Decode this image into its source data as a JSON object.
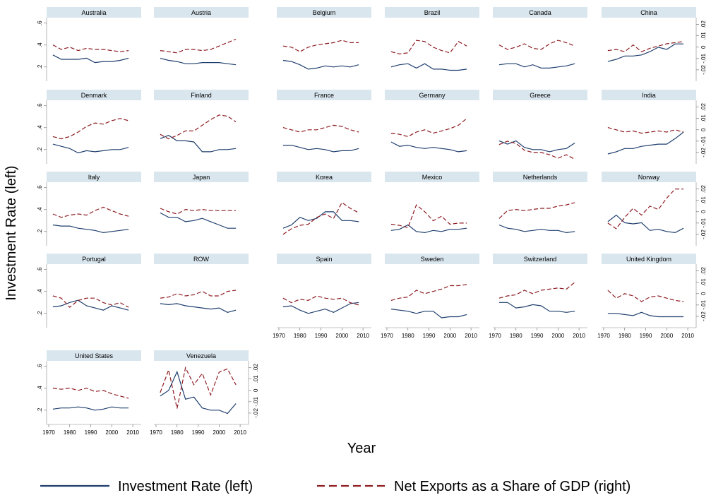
{
  "chart_data": {
    "type": "line",
    "x_label": "Year",
    "y_label": "Investment Rate (left)",
    "x": [
      1972,
      1976,
      1980,
      1984,
      1988,
      1992,
      1996,
      2000,
      2004,
      2008
    ],
    "xlim": [
      1969,
      2014
    ],
    "xticks": [
      1970,
      1980,
      1990,
      2000,
      2010
    ],
    "ylim": [
      0.07,
      0.65
    ],
    "yticks": [
      {
        "value": 0.2,
        "label": ".2"
      },
      {
        "value": 0.4,
        "label": ".4"
      },
      {
        "value": 0.6,
        "label": ".6"
      }
    ],
    "y2lim": [
      -0.03,
      0.026
    ],
    "y2ticks": [
      {
        "value": -0.02,
        "label": "-.02"
      },
      {
        "value": -0.01,
        "label": "-.01"
      },
      0,
      {
        "value": 0.01,
        "label": ".01"
      },
      {
        "value": 0.02,
        "label": ".02"
      }
    ],
    "series": [
      {
        "name": "Investment Rate (left)",
        "color": "#1f3f6e",
        "dash": "solid",
        "axis": "y"
      },
      {
        "name": "Net Exports as a Share of GDP (right)",
        "color": "#8e1c22",
        "dash": "dashed",
        "axis": "y2"
      }
    ],
    "panels": [
      {
        "title": "Australia",
        "values": [
          [
            0.31,
            0.27,
            0.27,
            0.27,
            0.28,
            0.24,
            0.25,
            0.25,
            0.26,
            0.28
          ],
          [
            0.002,
            -0.002,
            0.0,
            -0.003,
            -0.001,
            -0.002,
            -0.002,
            -0.003,
            -0.004,
            -0.003
          ]
        ]
      },
      {
        "title": "Austria",
        "values": [
          [
            0.28,
            0.26,
            0.25,
            0.23,
            0.23,
            0.24,
            0.24,
            0.24,
            0.23,
            0.22
          ],
          [
            -0.003,
            -0.004,
            -0.005,
            -0.002,
            -0.002,
            -0.003,
            -0.002,
            0.001,
            0.004,
            0.007
          ]
        ]
      },
      {
        "title": "Belgium",
        "values": [
          [
            0.26,
            0.25,
            0.22,
            0.18,
            0.19,
            0.21,
            0.2,
            0.21,
            0.2,
            0.22
          ],
          [
            0.001,
            0.0,
            -0.004,
            0.0,
            0.002,
            0.003,
            0.004,
            0.006,
            0.004,
            0.004
          ]
        ]
      },
      {
        "title": "Brazil",
        "values": [
          [
            0.2,
            0.22,
            0.23,
            0.19,
            0.23,
            0.18,
            0.18,
            0.17,
            0.17,
            0.18
          ],
          [
            -0.004,
            -0.006,
            -0.005,
            0.006,
            0.005,
            0.0,
            -0.003,
            -0.005,
            0.005,
            0.001
          ]
        ]
      },
      {
        "title": "Canada",
        "values": [
          [
            0.22,
            0.23,
            0.23,
            0.2,
            0.22,
            0.19,
            0.19,
            0.2,
            0.21,
            0.23
          ],
          [
            0.002,
            -0.002,
            0.0,
            0.003,
            -0.001,
            -0.002,
            0.003,
            0.006,
            0.004,
            0.001
          ]
        ]
      },
      {
        "title": "China",
        "values": [
          [
            0.25,
            0.27,
            0.3,
            0.3,
            0.31,
            0.34,
            0.38,
            0.36,
            0.41,
            0.41
          ],
          [
            -0.003,
            -0.002,
            -0.004,
            0.002,
            -0.004,
            -0.001,
            0.001,
            0.003,
            0.004,
            0.005
          ]
        ]
      },
      {
        "title": "Denmark",
        "values": [
          [
            0.25,
            0.23,
            0.21,
            0.17,
            0.19,
            0.18,
            0.19,
            0.2,
            0.2,
            0.22
          ],
          [
            -0.006,
            -0.008,
            -0.006,
            -0.002,
            0.003,
            0.006,
            0.005,
            0.008,
            0.01,
            0.008
          ]
        ]
      },
      {
        "title": "Finland",
        "values": [
          [
            0.3,
            0.33,
            0.28,
            0.28,
            0.27,
            0.18,
            0.18,
            0.2,
            0.2,
            0.21
          ],
          [
            -0.004,
            -0.008,
            -0.005,
            -0.001,
            -0.001,
            0.004,
            0.009,
            0.013,
            0.012,
            0.007
          ]
        ]
      },
      {
        "title": "France",
        "values": [
          [
            0.24,
            0.24,
            0.22,
            0.2,
            0.21,
            0.2,
            0.18,
            0.19,
            0.19,
            0.21
          ],
          [
            0.002,
            0.0,
            -0.002,
            0.0,
            0.0,
            0.002,
            0.004,
            0.003,
            0.0,
            -0.002
          ]
        ]
      },
      {
        "title": "Germany",
        "values": [
          [
            0.27,
            0.23,
            0.24,
            0.22,
            0.21,
            0.22,
            0.21,
            0.2,
            0.18,
            0.19
          ],
          [
            -0.003,
            -0.004,
            -0.006,
            -0.002,
            0.0,
            -0.003,
            -0.001,
            0.001,
            0.004,
            0.01
          ]
        ]
      },
      {
        "title": "Greece",
        "values": [
          [
            0.28,
            0.25,
            0.28,
            0.22,
            0.2,
            0.2,
            0.18,
            0.2,
            0.21,
            0.26
          ],
          [
            -0.013,
            -0.01,
            -0.012,
            -0.018,
            -0.02,
            -0.02,
            -0.022,
            -0.025,
            -0.022,
            -0.026
          ]
        ]
      },
      {
        "title": "India",
        "values": [
          [
            0.16,
            0.18,
            0.21,
            0.21,
            0.23,
            0.24,
            0.25,
            0.25,
            0.3,
            0.36
          ],
          [
            0.002,
            0.0,
            -0.002,
            -0.001,
            -0.003,
            -0.002,
            -0.001,
            -0.002,
            0.0,
            -0.002
          ]
        ]
      },
      {
        "title": "Italy",
        "values": [
          [
            0.26,
            0.25,
            0.25,
            0.23,
            0.22,
            0.21,
            0.19,
            0.2,
            0.21,
            0.22
          ],
          [
            -0.002,
            -0.005,
            -0.003,
            -0.002,
            -0.003,
            0.001,
            0.004,
            0.001,
            -0.002,
            -0.004
          ]
        ]
      },
      {
        "title": "Japan",
        "values": [
          [
            0.37,
            0.33,
            0.33,
            0.29,
            0.3,
            0.32,
            0.29,
            0.26,
            0.23,
            0.23
          ],
          [
            0.003,
            0.0,
            -0.002,
            0.002,
            0.001,
            0.002,
            0.001,
            0.001,
            0.001,
            0.001
          ]
        ]
      },
      {
        "title": "Korea",
        "values": [
          [
            0.23,
            0.26,
            0.33,
            0.3,
            0.32,
            0.38,
            0.38,
            0.3,
            0.3,
            0.29
          ],
          [
            -0.02,
            -0.015,
            -0.012,
            -0.011,
            -0.005,
            -0.002,
            -0.006,
            0.008,
            0.003,
            -0.001
          ]
        ]
      },
      {
        "title": "Mexico",
        "values": [
          [
            0.21,
            0.22,
            0.26,
            0.2,
            0.19,
            0.21,
            0.2,
            0.22,
            0.22,
            0.23
          ],
          [
            -0.011,
            -0.012,
            -0.014,
            0.006,
            0.0,
            -0.008,
            -0.004,
            -0.011,
            -0.01,
            -0.01
          ]
        ]
      },
      {
        "title": "Netherlands",
        "values": [
          [
            0.26,
            0.23,
            0.22,
            0.2,
            0.21,
            0.22,
            0.21,
            0.21,
            0.19,
            0.2
          ],
          [
            -0.006,
            0.001,
            0.002,
            0.001,
            0.002,
            0.003,
            0.003,
            0.005,
            0.006,
            0.008
          ]
        ]
      },
      {
        "title": "Norway",
        "values": [
          [
            0.29,
            0.35,
            0.28,
            0.27,
            0.28,
            0.21,
            0.22,
            0.2,
            0.19,
            0.23
          ],
          [
            -0.01,
            -0.015,
            -0.005,
            0.003,
            -0.003,
            0.005,
            0.002,
            0.012,
            0.02,
            0.02
          ]
        ]
      },
      {
        "title": "Portugal",
        "values": [
          [
            0.26,
            0.27,
            0.3,
            0.32,
            0.27,
            0.25,
            0.23,
            0.27,
            0.25,
            0.23
          ],
          [
            -0.002,
            -0.004,
            -0.012,
            -0.006,
            -0.004,
            -0.004,
            -0.008,
            -0.01,
            -0.008,
            -0.012
          ]
        ]
      },
      {
        "title": "ROW",
        "values": [
          [
            0.29,
            0.28,
            0.29,
            0.27,
            0.26,
            0.25,
            0.24,
            0.25,
            0.21,
            0.23
          ],
          [
            -0.004,
            -0.003,
            0.0,
            -0.002,
            -0.001,
            0.002,
            -0.002,
            -0.002,
            0.002,
            0.003
          ]
        ]
      },
      {
        "title": "Spain",
        "values": [
          [
            0.26,
            0.27,
            0.23,
            0.2,
            0.22,
            0.24,
            0.21,
            0.25,
            0.29,
            0.3
          ],
          [
            -0.004,
            -0.008,
            -0.005,
            -0.006,
            -0.002,
            -0.004,
            -0.005,
            -0.004,
            -0.008,
            -0.01
          ]
        ]
      },
      {
        "title": "Sweden",
        "values": [
          [
            0.24,
            0.23,
            0.22,
            0.2,
            0.22,
            0.22,
            0.16,
            0.17,
            0.17,
            0.19
          ],
          [
            -0.006,
            -0.004,
            -0.003,
            0.003,
            0.0,
            0.002,
            0.004,
            0.007,
            0.007,
            0.008
          ]
        ]
      },
      {
        "title": "Switzerland",
        "values": [
          [
            0.3,
            0.3,
            0.25,
            0.26,
            0.28,
            0.27,
            0.22,
            0.22,
            0.21,
            0.22
          ],
          [
            -0.004,
            -0.002,
            -0.001,
            0.003,
            0.0,
            0.003,
            0.004,
            0.005,
            0.004,
            0.01
          ]
        ]
      },
      {
        "title": "United Kingdom",
        "values": [
          [
            0.2,
            0.2,
            0.19,
            0.18,
            0.21,
            0.18,
            0.17,
            0.17,
            0.17,
            0.17
          ],
          [
            0.003,
            -0.004,
            0.0,
            -0.002,
            -0.007,
            -0.003,
            -0.002,
            -0.004,
            -0.006,
            -0.007
          ]
        ]
      },
      {
        "title": "United States",
        "values": [
          [
            0.21,
            0.22,
            0.22,
            0.23,
            0.22,
            0.2,
            0.21,
            0.23,
            0.22,
            0.22
          ],
          [
            0.002,
            0.001,
            0.002,
            0.0,
            0.002,
            -0.001,
            0.0,
            -0.003,
            -0.005,
            -0.007
          ]
        ]
      },
      {
        "title": "Venezuela",
        "values": [
          [
            0.33,
            0.38,
            0.55,
            0.3,
            0.32,
            0.22,
            0.2,
            0.2,
            0.17,
            0.26
          ],
          [
            -0.002,
            0.018,
            -0.016,
            0.02,
            0.005,
            0.015,
            -0.004,
            0.016,
            0.019,
            0.005
          ]
        ]
      }
    ]
  }
}
